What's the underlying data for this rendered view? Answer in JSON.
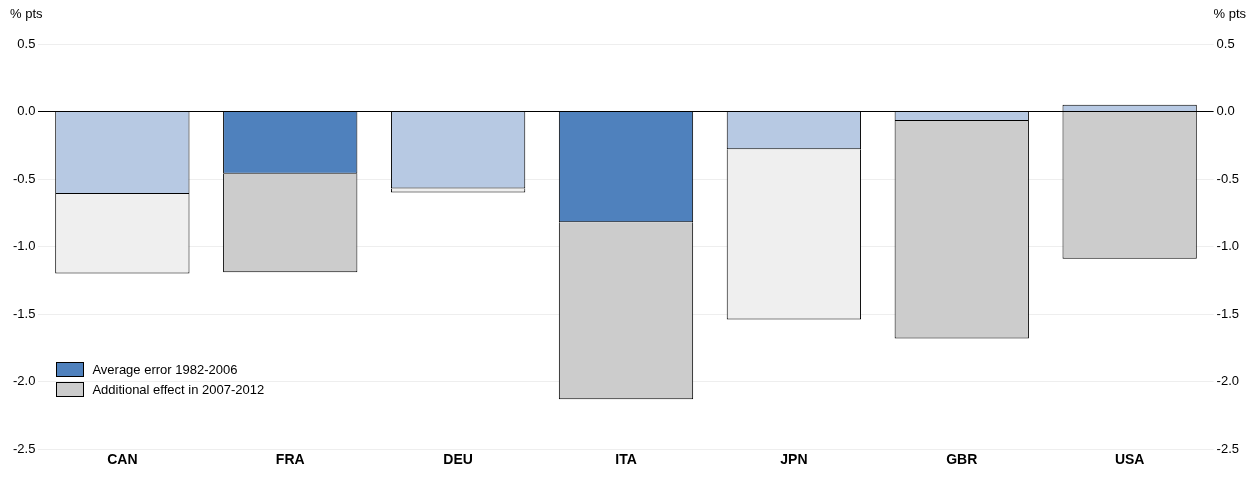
{
  "chart_data": {
    "type": "bar",
    "stacked": true,
    "ylabel": "% pts",
    "y2label": "% pts",
    "categories": [
      "CAN",
      "FRA",
      "DEU",
      "ITA",
      "JPN",
      "GBR",
      "USA"
    ],
    "series": [
      {
        "name": "Average error 1982-2006",
        "color": "#4f81bd",
        "colors": [
          "#b7c9e3",
          "#4f81bd",
          "#b7c9e3",
          "#4f81bd",
          "#b7c9e3",
          "#b7c9e3",
          "#b7c9e3"
        ],
        "values": [
          -0.61,
          -0.46,
          -0.57,
          -0.82,
          -0.28,
          -0.07,
          0.05
        ]
      },
      {
        "name": "Additional effect in 2007-2012",
        "color": "#cccccc",
        "colors": [
          "#efefef",
          "#cccccc",
          "#efefef",
          "#cccccc",
          "#efefef",
          "#cccccc",
          "#cccccc"
        ],
        "values": [
          -0.59,
          -0.73,
          -0.03,
          -1.31,
          -1.26,
          -1.61,
          -1.09
        ]
      }
    ],
    "ylim": [
      -2.5,
      0.5
    ],
    "yticks": [
      {
        "value": -2.5,
        "label": "-2.5"
      },
      {
        "value": -2,
        "label": "-2.0"
      },
      {
        "value": -1.5,
        "label": "-1.5"
      },
      {
        "value": -1,
        "label": "-1.0"
      },
      {
        "value": -0.5,
        "label": "-0.5"
      },
      {
        "value": 0,
        "label": "0.0"
      },
      {
        "value": 0.5,
        "label": "0.5"
      }
    ],
    "y2lim": [
      -2.5,
      0.5
    ],
    "y2ticks": [
      {
        "value": -2.5,
        "label": "-2.5"
      },
      {
        "value": -2,
        "label": "-2.0"
      },
      {
        "value": -1.5,
        "label": "-1.5"
      },
      {
        "value": -1,
        "label": "-1.0"
      },
      {
        "value": -0.5,
        "label": "-0.5"
      },
      {
        "value": 0,
        "label": "0.0"
      },
      {
        "value": 0.5,
        "label": "0.5"
      }
    ],
    "grid": "y",
    "legend": "bottom left"
  }
}
